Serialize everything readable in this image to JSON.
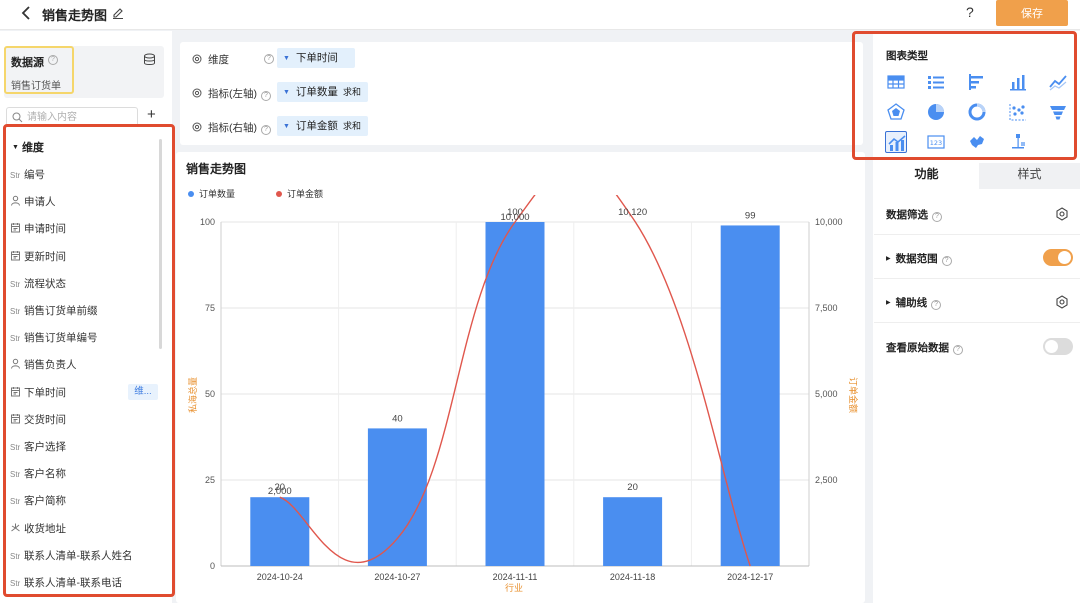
{
  "header": {
    "title": "销售走势图",
    "help_label": "?",
    "save_label": "保存"
  },
  "datasource": {
    "label": "数据源",
    "help": "?",
    "name": "销售订货单"
  },
  "search": {
    "placeholder": "请输入内容",
    "add_label": "+"
  },
  "fields": {
    "header": "维度",
    "items": [
      {
        "type": "str",
        "type_label": "Str",
        "label": "编号"
      },
      {
        "type": "user",
        "type_label": "",
        "label": "申请人"
      },
      {
        "type": "date",
        "type_label": "",
        "label": "申请时间"
      },
      {
        "type": "date",
        "type_label": "",
        "label": "更新时间"
      },
      {
        "type": "str",
        "type_label": "Str",
        "label": "流程状态"
      },
      {
        "type": "str",
        "type_label": "Str",
        "label": "销售订货单前缀"
      },
      {
        "type": "str",
        "type_label": "Str",
        "label": "销售订货单编号"
      },
      {
        "type": "user",
        "type_label": "",
        "label": "销售负责人"
      },
      {
        "type": "date",
        "type_label": "",
        "label": "下单时间"
      },
      {
        "type": "date",
        "type_label": "",
        "label": "交货时间"
      },
      {
        "type": "str",
        "type_label": "Str",
        "label": "客户选择"
      },
      {
        "type": "str",
        "type_label": "Str",
        "label": "客户名称"
      },
      {
        "type": "str",
        "type_label": "Str",
        "label": "客户简称"
      },
      {
        "type": "location",
        "type_label": "",
        "label": "收货地址"
      },
      {
        "type": "str",
        "type_label": "Str",
        "label": "联系人清单-联系人姓名"
      },
      {
        "type": "str",
        "type_label": "Str",
        "label": "联系人清单-联系电话"
      }
    ],
    "badge": "维..."
  },
  "config": {
    "dimension": {
      "label": "维度",
      "help": "?",
      "chip": "下单时间"
    },
    "metric_left": {
      "label": "指标(左轴)",
      "help": "?",
      "chip": "订单数量",
      "agg": "求和"
    },
    "metric_right": {
      "label": "指标(右轴)",
      "help": "?",
      "chip": "订单金额",
      "agg": "求和"
    }
  },
  "chart_title": "销售走势图",
  "chart_data": {
    "type": "bar",
    "categories": [
      "2024-10-24",
      "2024-10-27",
      "2024-11-11",
      "2024-11-18",
      "2024-12-17"
    ],
    "series": [
      {
        "name": "订单数量",
        "kind": "bar",
        "axis": "left",
        "color": "#4a8ef0",
        "values": [
          20,
          40,
          100,
          20,
          99
        ],
        "labels": [
          "20",
          "40",
          "100",
          "20",
          "99"
        ]
      },
      {
        "name": "订单金额",
        "kind": "line",
        "axis": "right",
        "color": "#e0574d",
        "values": [
          2000,
          800,
          10000,
          10120,
          0
        ],
        "labels": [
          "2,000",
          "",
          "10,000",
          "10,120",
          ""
        ]
      }
    ],
    "xlabel": "行业",
    "ylabel_left": "私海总量",
    "ylabel_right": "订单金额",
    "ylim_left": [
      0,
      100
    ],
    "ylim_right": [
      0,
      10000
    ],
    "yticks_left": [
      "0",
      "25",
      "50",
      "75",
      "100"
    ],
    "yticks_right": [
      "",
      "2,500",
      "5,000",
      "7,500",
      "10,000"
    ],
    "legend_position": "top-left",
    "grid": true
  },
  "right_panel": {
    "chart_type_label": "图表类型",
    "chart_types": [
      "table-icon",
      "list-icon",
      "horizontal-bar-icon",
      "bar-icon",
      "line-icon",
      "radar-icon",
      "pie-icon",
      "donut-icon",
      "scatter-icon",
      "funnel-icon",
      "combo-icon",
      "number-card-icon",
      "map-icon",
      "tree-icon"
    ],
    "selected_chart_type": "combo-icon",
    "tabs": {
      "function": "功能",
      "style": "样式"
    },
    "options": {
      "filter": {
        "label": "数据筛选",
        "help": "?"
      },
      "range": {
        "label": "数据范围",
        "help": "?",
        "enabled": true
      },
      "guide": {
        "label": "辅助线",
        "help": "?"
      },
      "raw": {
        "label": "查看原始数据",
        "help": "?",
        "enabled": false
      }
    }
  },
  "colors": {
    "accent": "#f0a04b",
    "highlight_border": "#e04b2f",
    "bar": "#4a8ef0",
    "line": "#e0574d",
    "datasource_border": "#f5d66b"
  }
}
